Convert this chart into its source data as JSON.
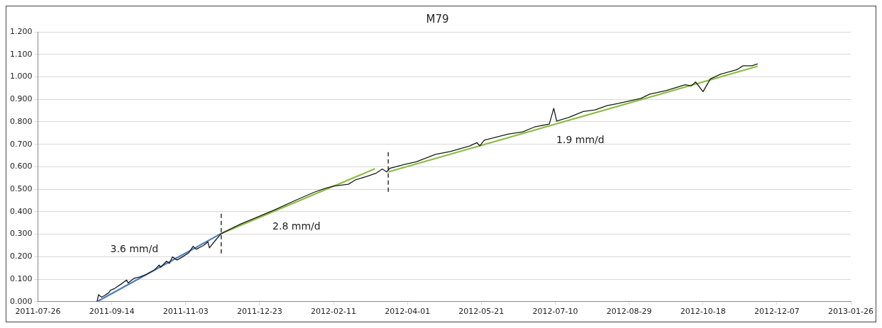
{
  "chart_data": {
    "type": "line",
    "title": "M79",
    "xlim": [
      "2011-07-26",
      "2013-01-26"
    ],
    "xticks": [
      "2011-07-26",
      "2011-09-14",
      "2011-11-03",
      "2011-12-23",
      "2012-02-11",
      "2012-04-01",
      "2012-05-21",
      "2012-07-10",
      "2012-08-29",
      "2012-10-18",
      "2012-12-07",
      "2013-01-26"
    ],
    "ylim": [
      0,
      1.2
    ],
    "yticks": [
      {
        "value": 0,
        "label": "0.000"
      },
      {
        "value": 0.1,
        "label": "0.100"
      },
      {
        "value": 0.2,
        "label": "0.200"
      },
      {
        "value": 0.3,
        "label": "0.300"
      },
      {
        "value": 0.4,
        "label": "0.400"
      },
      {
        "value": 0.5,
        "label": "0.500"
      },
      {
        "value": 0.6,
        "label": "0.600"
      },
      {
        "value": 0.7,
        "label": "0.700"
      },
      {
        "value": 0.8,
        "label": "0.800"
      },
      {
        "value": 0.9,
        "label": "0.900"
      },
      {
        "value": 1.0,
        "label": "1.000"
      },
      {
        "value": 1.1,
        "label": "1.100"
      },
      {
        "value": 1.2,
        "label": "1.200"
      }
    ],
    "grid": "y",
    "legend": false,
    "marker": "none",
    "line_style": "solid",
    "series": [
      {
        "color": "#1a1a1a",
        "x": [
          "2011-09-04",
          "2011-09-05",
          "2011-09-07",
          "2011-09-09",
          "2011-09-12",
          "2011-09-13",
          "2011-09-16",
          "2011-09-20",
          "2011-09-24",
          "2011-09-25",
          "2011-09-29",
          "2011-10-03",
          "2011-10-07",
          "2011-10-13",
          "2011-10-16",
          "2011-10-17",
          "2011-10-21",
          "2011-10-23",
          "2011-10-25",
          "2011-10-28",
          "2011-10-31",
          "2011-11-05",
          "2011-11-08",
          "2011-11-10",
          "2011-11-15",
          "2011-11-18",
          "2011-11-19",
          "2011-11-23",
          "2011-11-27",
          "2011-12-10",
          "2012-01-02",
          "2012-01-16",
          "2012-01-29",
          "2012-02-05",
          "2012-02-11",
          "2012-02-21",
          "2012-02-26",
          "2012-03-04",
          "2012-03-11",
          "2012-03-15",
          "2012-03-18",
          "2012-03-20",
          "2012-03-30",
          "2012-04-07",
          "2012-04-20",
          "2012-04-30",
          "2012-05-13",
          "2012-05-18",
          "2012-05-20",
          "2012-05-23",
          "2012-06-08",
          "2012-06-18",
          "2012-06-26",
          "2012-07-06",
          "2012-07-09",
          "2012-07-11",
          "2012-07-19",
          "2012-07-29",
          "2012-08-06",
          "2012-08-14",
          "2012-08-22",
          "2012-09-06",
          "2012-09-12",
          "2012-09-23",
          "2012-10-06",
          "2012-10-10",
          "2012-10-13",
          "2012-10-18",
          "2012-10-23",
          "2012-10-30",
          "2012-11-09",
          "2012-11-11",
          "2012-11-14",
          "2012-11-20",
          "2012-11-24"
        ],
        "values": [
          0.0,
          0.031,
          0.02,
          0.027,
          0.04,
          0.05,
          0.059,
          0.077,
          0.096,
          0.083,
          0.104,
          0.11,
          0.12,
          0.142,
          0.163,
          0.153,
          0.18,
          0.17,
          0.199,
          0.185,
          0.196,
          0.217,
          0.246,
          0.233,
          0.25,
          0.266,
          0.239,
          0.272,
          0.303,
          0.345,
          0.408,
          0.45,
          0.487,
          0.503,
          0.514,
          0.522,
          0.542,
          0.556,
          0.572,
          0.59,
          0.577,
          0.593,
          0.61,
          0.622,
          0.655,
          0.668,
          0.692,
          0.707,
          0.693,
          0.718,
          0.745,
          0.755,
          0.777,
          0.79,
          0.86,
          0.803,
          0.819,
          0.846,
          0.853,
          0.872,
          0.882,
          0.904,
          0.923,
          0.939,
          0.965,
          0.96,
          0.977,
          0.934,
          0.991,
          1.012,
          1.03,
          1.036,
          1.049,
          1.049,
          1.058
        ]
      },
      {
        "color": "#4a7ebb",
        "x": [
          "2011-09-04",
          "2011-11-27"
        ],
        "values": [
          0.0,
          0.303
        ]
      },
      {
        "color": "#8cbd3f",
        "x": [
          "2011-11-27",
          "2012-03-10"
        ],
        "values": [
          0.303,
          0.591
        ]
      },
      {
        "color": "#8cbd3f",
        "x": [
          "2012-03-19",
          "2012-11-24"
        ],
        "values": [
          0.577,
          1.047
        ]
      }
    ],
    "ref_lines": [
      {
        "axis": "x",
        "value": "2011-11-27",
        "color": "#000000",
        "line_style": "dashed"
      },
      {
        "axis": "x",
        "value": "2012-03-19",
        "color": "#000000",
        "line_style": "dashed"
      }
    ],
    "annotations": [
      "3.6 mm/d",
      "2.8 mm/d",
      "1.9 mm/d"
    ]
  }
}
